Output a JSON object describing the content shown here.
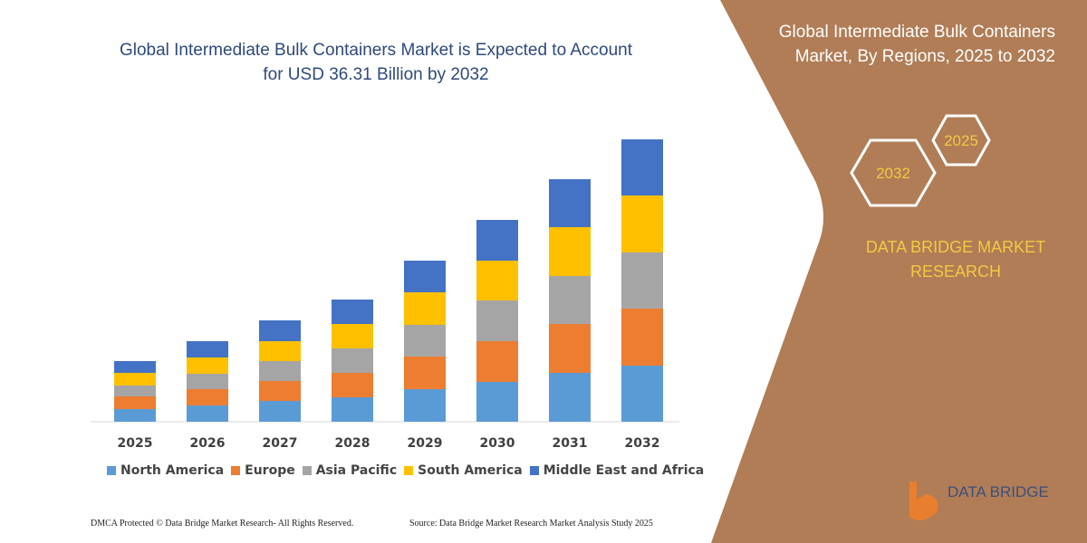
{
  "chart_data": {
    "type": "bar",
    "stacked": true,
    "title": "Global Intermediate Bulk Containers Market is Expected to Account for USD 36.31 Billion by 2032",
    "categories": [
      "2025",
      "2026",
      "2027",
      "2028",
      "2029",
      "2030",
      "2031",
      "2032"
    ],
    "series": [
      {
        "name": "North America",
        "color": "#5b9bd5",
        "values": [
          14,
          18,
          23,
          27,
          36,
          44,
          54,
          62
        ]
      },
      {
        "name": "Europe",
        "color": "#ed7d31",
        "values": [
          14,
          18,
          22,
          27,
          36,
          45,
          54,
          63
        ]
      },
      {
        "name": "Asia Pacific",
        "color": "#a5a5a5",
        "values": [
          12,
          17,
          22,
          27,
          35,
          45,
          53,
          62
        ]
      },
      {
        "name": "South America",
        "color": "#ffc000",
        "values": [
          14,
          18,
          22,
          27,
          36,
          44,
          54,
          63
        ]
      },
      {
        "name": "Middle East and Africa",
        "color": "#4472c4",
        "values": [
          13,
          18,
          23,
          27,
          35,
          45,
          53,
          62
        ]
      }
    ]
  },
  "panel": {
    "title": "Global Intermediate Bulk Containers Market, By Regions, 2025 to 2032",
    "hexagons": [
      "2025",
      "2032"
    ],
    "brand": "DATA BRIDGE MARKET RESEARCH"
  },
  "footer": {
    "copyright": "DMCA Protected © Data Bridge Market Research-  All Rights Reserved.",
    "source": "Source: Data Bridge Market Research  Market Analysis Study 2025"
  },
  "logo": "DATA BRIDGE"
}
